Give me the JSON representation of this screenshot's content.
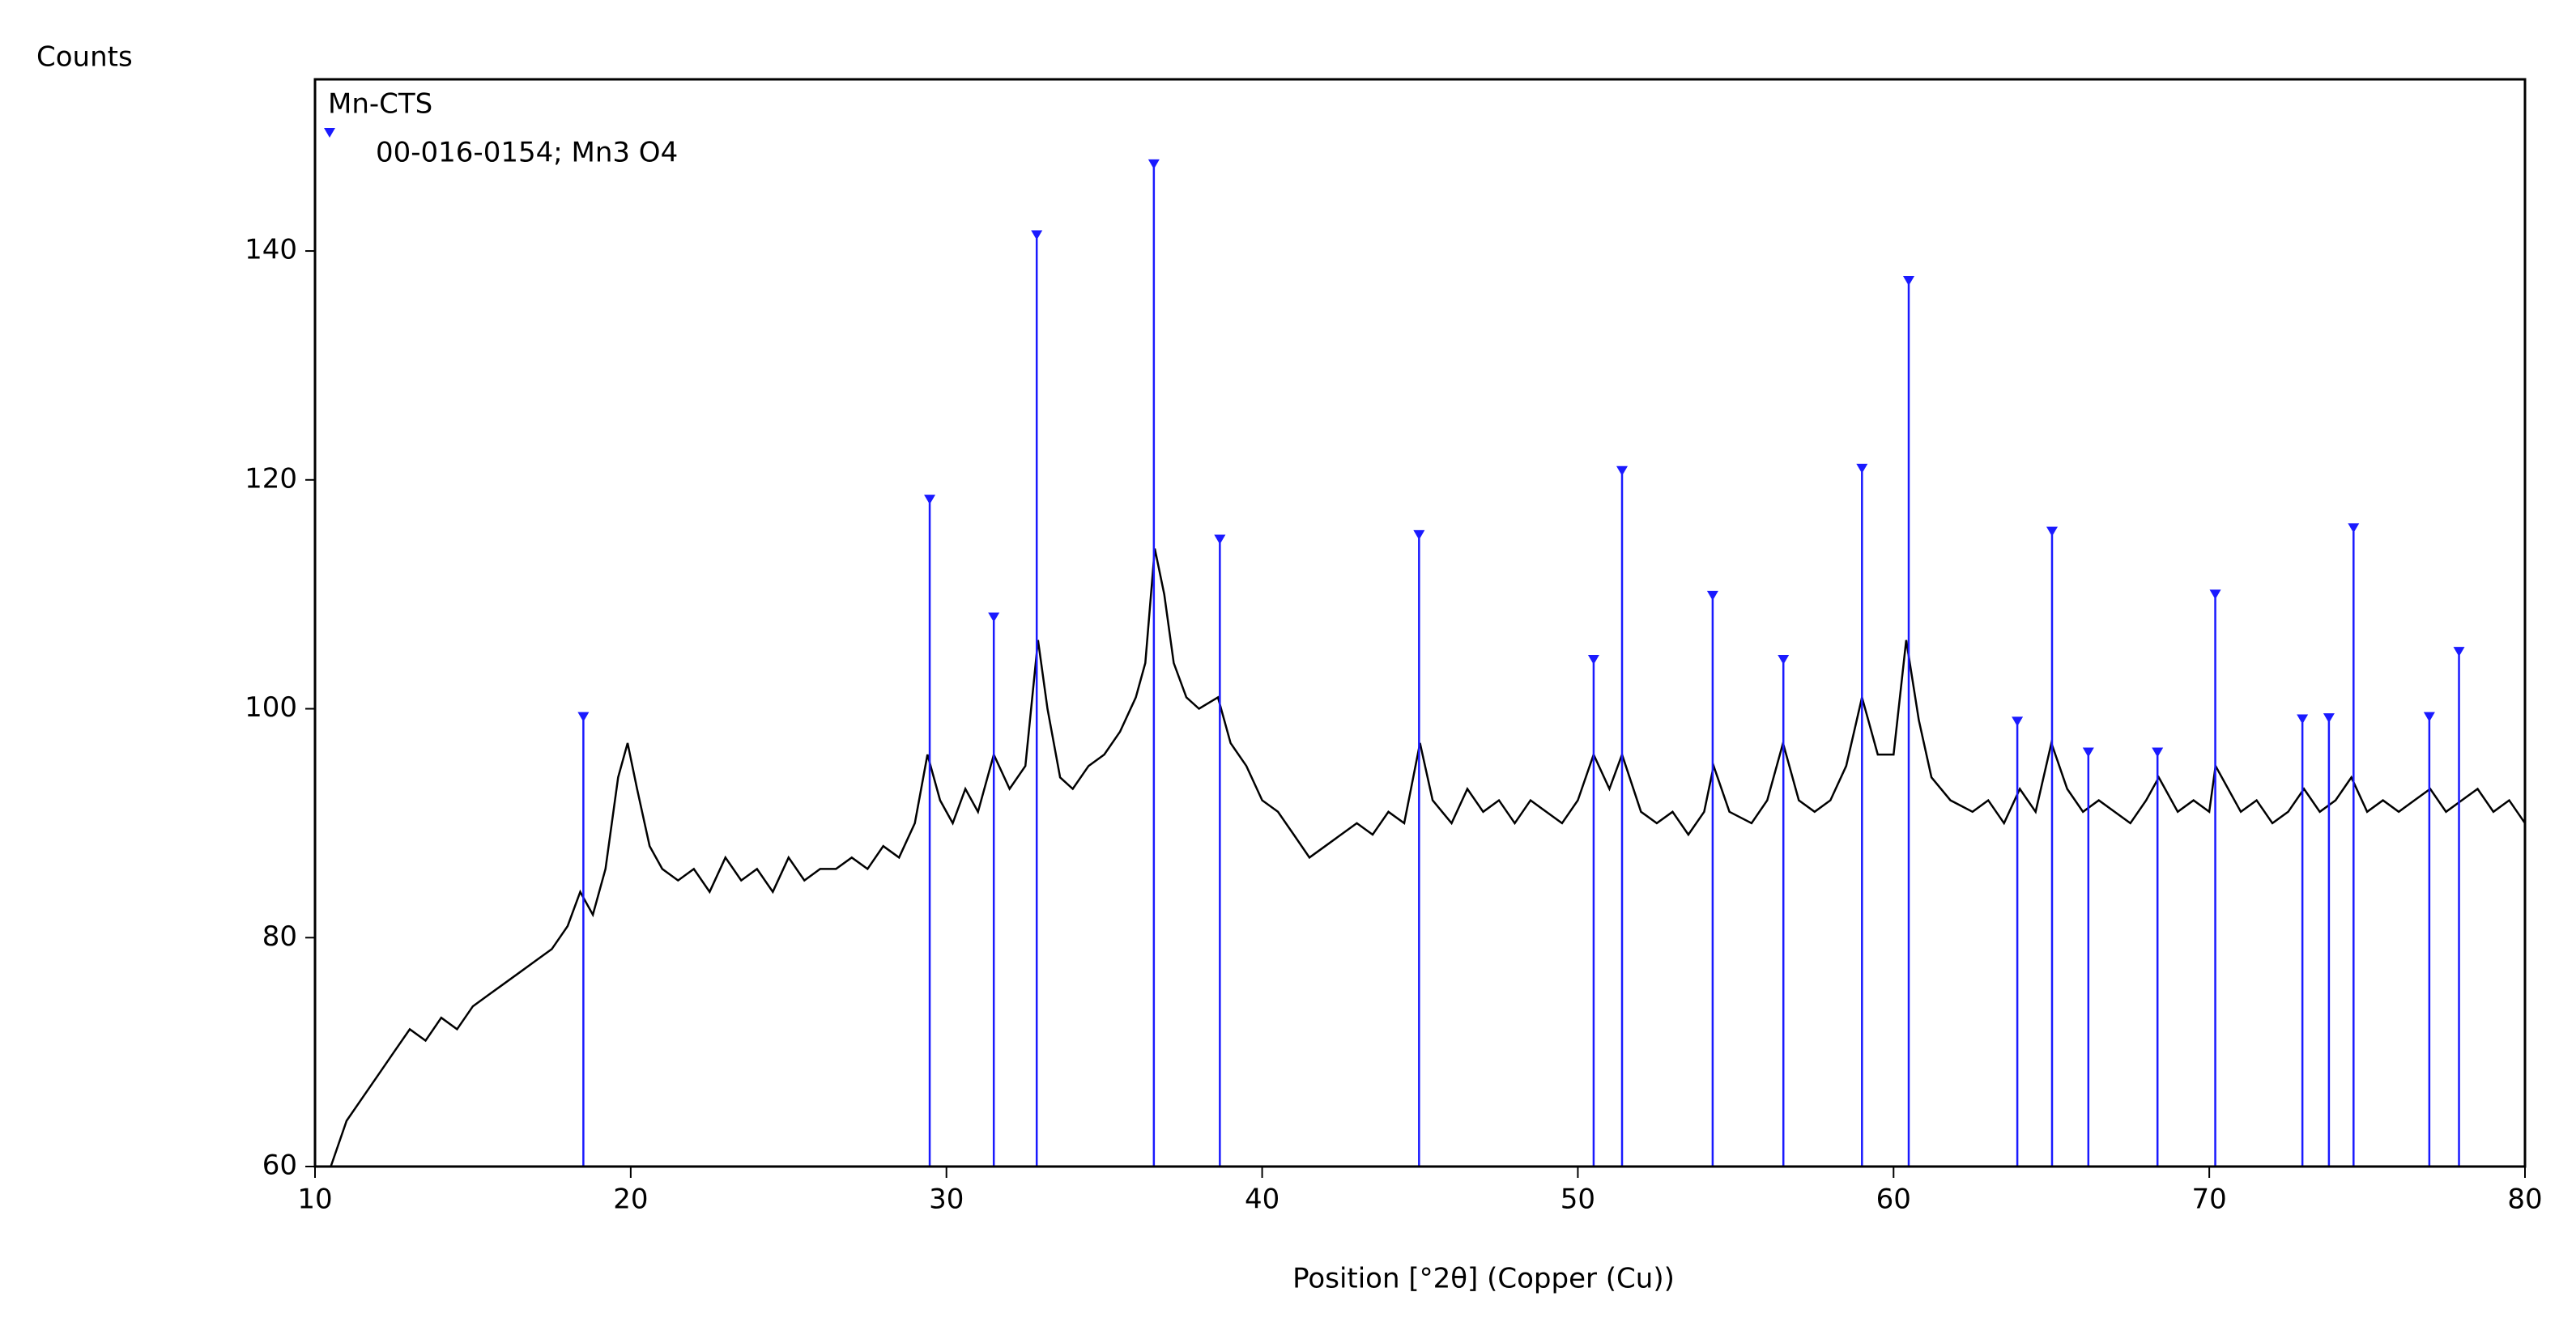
{
  "chart_data": {
    "type": "line",
    "y_label": "Counts",
    "x_label": "Position [°2θ] (Copper (Cu))",
    "xlim": [
      10,
      80
    ],
    "xticks": [
      10,
      20,
      30,
      40,
      50,
      60,
      70,
      80
    ],
    "ylim": [
      60,
      155
    ],
    "yticks": [
      60,
      80,
      100,
      120,
      140
    ],
    "series": [
      {
        "name": "Mn-CTS",
        "type": "line",
        "color": "#000000",
        "x": [
          10.5,
          11,
          11.5,
          12,
          12.5,
          13,
          13.5,
          14,
          14.5,
          15,
          15.5,
          16,
          16.5,
          17,
          17.5,
          18,
          18.4,
          18.8,
          19.2,
          19.6,
          19.9,
          20.2,
          20.6,
          21,
          21.5,
          22,
          22.5,
          23,
          23.5,
          24,
          24.5,
          25,
          25.5,
          26,
          26.5,
          27,
          27.5,
          28,
          28.5,
          29,
          29.4,
          29.8,
          30.2,
          30.6,
          31,
          31.5,
          32,
          32.5,
          32.9,
          33.2,
          33.6,
          34,
          34.5,
          35,
          35.5,
          36,
          36.3,
          36.6,
          36.9,
          37.2,
          37.6,
          38,
          38.6,
          39,
          39.5,
          40,
          40.5,
          41,
          41.5,
          42,
          42.5,
          43,
          43.5,
          44,
          44.5,
          45,
          45.4,
          46,
          46.5,
          47,
          47.5,
          48,
          48.5,
          49,
          49.5,
          50,
          50.5,
          51,
          51.4,
          52,
          52.5,
          53,
          53.5,
          54,
          54.3,
          54.8,
          55.5,
          56,
          56.5,
          57,
          57.5,
          58,
          58.5,
          59,
          59.5,
          60,
          60.4,
          60.8,
          61.2,
          61.8,
          62.5,
          63,
          63.5,
          64,
          64.5,
          65,
          65.5,
          66,
          66.5,
          67,
          67.5,
          68,
          68.4,
          69,
          69.5,
          70,
          70.2,
          71,
          71.5,
          72,
          72.5,
          73,
          73.5,
          74,
          74.5,
          75,
          75.5,
          76,
          76.5,
          77,
          77.5,
          78,
          78.5,
          79,
          79.5,
          80
        ],
        "values": [
          60,
          64,
          66,
          68,
          70,
          72,
          71,
          73,
          72,
          74,
          75,
          76,
          77,
          78,
          79,
          81,
          84,
          82,
          86,
          94,
          97,
          93,
          88,
          86,
          85,
          86,
          84,
          87,
          85,
          86,
          84,
          87,
          85,
          86,
          86,
          87,
          86,
          88,
          87,
          90,
          96,
          92,
          90,
          93,
          91,
          96,
          93,
          95,
          106,
          100,
          94,
          93,
          95,
          96,
          98,
          101,
          104,
          114,
          110,
          104,
          101,
          100,
          101,
          97,
          95,
          92,
          91,
          89,
          87,
          88,
          89,
          90,
          89,
          91,
          90,
          97,
          92,
          90,
          93,
          91,
          92,
          90,
          92,
          91,
          90,
          92,
          96,
          93,
          96,
          91,
          90,
          91,
          89,
          91,
          95,
          91,
          90,
          92,
          97,
          92,
          91,
          92,
          95,
          101,
          96,
          96,
          106,
          99,
          94,
          92,
          91,
          92,
          90,
          93,
          91,
          97,
          93,
          91,
          92,
          91,
          90,
          92,
          94,
          91,
          92,
          91,
          95,
          91,
          92,
          90,
          91,
          93,
          91,
          92,
          94,
          91,
          92,
          91,
          92,
          93,
          91,
          92,
          93,
          91,
          92,
          90
        ]
      },
      {
        "name": "00-016-0154; Mn3 O4",
        "type": "stem",
        "color": "#1a1aff",
        "x": [
          18.5,
          29.47,
          31.5,
          32.86,
          36.57,
          38.66,
          44.97,
          50.5,
          51.4,
          54.27,
          56.51,
          59.0,
          60.48,
          63.92,
          65.02,
          66.17,
          68.36,
          70.19,
          72.95,
          73.79,
          74.57,
          76.97,
          77.91
        ],
        "values": [
          99,
          118,
          107.7,
          141.1,
          147.3,
          114.5,
          114.9,
          104,
          120.5,
          109.6,
          104,
          120.7,
          137.1,
          98.6,
          115.2,
          95.9,
          95.9,
          109.7,
          98.8,
          98.9,
          115.5,
          99,
          104.7
        ]
      }
    ]
  }
}
